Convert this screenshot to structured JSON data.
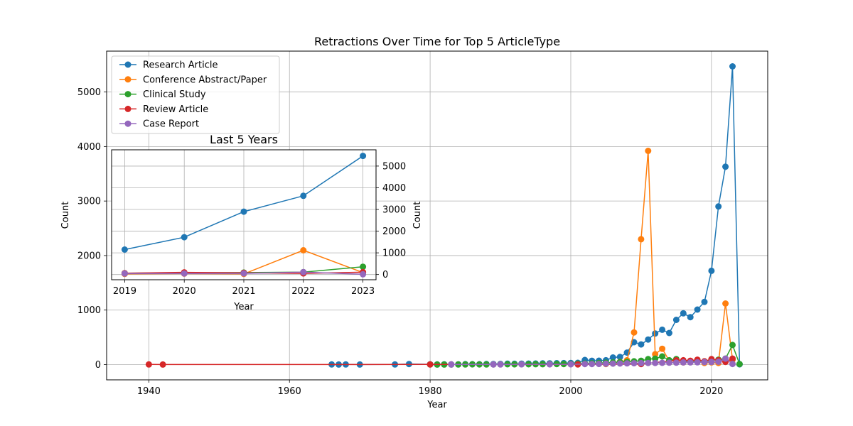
{
  "chart_data": [
    {
      "type": "line",
      "title": "Retractions Over Time for Top 5 ArticleType",
      "xlabel": "Year",
      "ylabel": "Count",
      "xlim": [
        1934,
        2028
      ],
      "ylim": [
        -280,
        5750
      ],
      "xticks": [
        1940,
        1960,
        1980,
        2000,
        2020
      ],
      "yticks": [
        0,
        1000,
        2000,
        3000,
        4000,
        5000
      ],
      "grid": true,
      "legend_position": "upper-left",
      "series": [
        {
          "name": "Research Article",
          "color": "#1f77b4",
          "x": [
            1966,
            1967,
            1968,
            1970,
            1975,
            1977,
            1980,
            1981,
            1982,
            1983,
            1984,
            1985,
            1986,
            1987,
            1988,
            1989,
            1990,
            1991,
            1992,
            1993,
            1994,
            1995,
            1996,
            1997,
            1998,
            1999,
            2000,
            2001,
            2002,
            2003,
            2004,
            2005,
            2006,
            2007,
            2008,
            2009,
            2010,
            2011,
            2012,
            2013,
            2014,
            2015,
            2016,
            2017,
            2018,
            2019,
            2020,
            2021,
            2022,
            2023,
            2024
          ],
          "y": [
            2,
            1,
            2,
            1,
            3,
            10,
            5,
            3,
            5,
            2,
            4,
            8,
            6,
            7,
            9,
            10,
            12,
            15,
            14,
            17,
            18,
            20,
            22,
            24,
            26,
            28,
            30,
            32,
            85,
            70,
            72,
            80,
            130,
            140,
            220,
            410,
            370,
            460,
            570,
            640,
            580,
            820,
            940,
            870,
            1010,
            1150,
            1720,
            2900,
            3630,
            5470,
            5
          ]
        },
        {
          "name": "Conference Abstract/Paper",
          "color": "#ff7f0e",
          "x": [
            2005,
            2006,
            2007,
            2008,
            2009,
            2010,
            2011,
            2012,
            2013,
            2014,
            2015,
            2016,
            2017,
            2018,
            2019,
            2020,
            2021,
            2022,
            2023
          ],
          "y": [
            10,
            20,
            50,
            80,
            590,
            2300,
            3920,
            190,
            290,
            70,
            60,
            40,
            50,
            60,
            30,
            40,
            30,
            1120,
            90
          ]
        },
        {
          "name": "Clinical Study",
          "color": "#2ca02c",
          "x": [
            1980,
            1981,
            1982,
            1983,
            1984,
            1985,
            1986,
            1987,
            1988,
            1989,
            1990,
            1991,
            1992,
            1993,
            1994,
            1995,
            1996,
            1997,
            1998,
            1999,
            2000,
            2001,
            2002,
            2003,
            2004,
            2005,
            2006,
            2007,
            2008,
            2009,
            2010,
            2011,
            2012,
            2013,
            2014,
            2015,
            2016,
            2017,
            2018,
            2019,
            2020,
            2021,
            2022,
            2023,
            2024
          ],
          "y": [
            2,
            1,
            1,
            2,
            3,
            2,
            5,
            4,
            3,
            4,
            5,
            6,
            5,
            6,
            7,
            8,
            8,
            9,
            10,
            11,
            12,
            15,
            20,
            25,
            30,
            35,
            40,
            45,
            50,
            60,
            70,
            100,
            110,
            150,
            80,
            100,
            60,
            50,
            70,
            60,
            80,
            90,
            110,
            360,
            10
          ]
        },
        {
          "name": "Review Article",
          "color": "#d62728",
          "x": [
            1940,
            1942,
            1980,
            2001,
            2010,
            2015,
            2016,
            2017,
            2018,
            2019,
            2020,
            2021,
            2022,
            2023
          ],
          "y": [
            2,
            1,
            3,
            2,
            10,
            80,
            80,
            70,
            90,
            60,
            100,
            80,
            50,
            110
          ]
        },
        {
          "name": "Case Report",
          "color": "#9467bd",
          "x": [
            1983,
            1989,
            1990,
            1993,
            1997,
            2000,
            2002,
            2003,
            2004,
            2005,
            2006,
            2007,
            2008,
            2009,
            2010,
            2011,
            2012,
            2013,
            2014,
            2015,
            2016,
            2017,
            2018,
            2019,
            2020,
            2021,
            2022,
            2023
          ],
          "y": [
            2,
            3,
            3,
            5,
            5,
            5,
            10,
            10,
            12,
            15,
            18,
            20,
            22,
            25,
            28,
            30,
            30,
            32,
            35,
            35,
            40,
            40,
            42,
            45,
            48,
            52,
            110,
            12
          ]
        }
      ]
    },
    {
      "type": "line",
      "title": "Last 5 Years",
      "xlabel": "Year",
      "ylabel": "Count",
      "xlim": [
        2018.78,
        2023.22
      ],
      "ylim": [
        -240,
        5750
      ],
      "xticks": [
        2019,
        2020,
        2021,
        2022,
        2023
      ],
      "yticks": [
        0,
        1000,
        2000,
        3000,
        4000,
        5000
      ],
      "grid": true,
      "series": [
        {
          "name": "Research Article",
          "color": "#1f77b4",
          "x": [
            2019,
            2020,
            2021,
            2022,
            2023
          ],
          "y": [
            1150,
            1720,
            2900,
            3630,
            5470
          ]
        },
        {
          "name": "Conference Abstract/Paper",
          "color": "#ff7f0e",
          "x": [
            2019,
            2020,
            2021,
            2022,
            2023
          ],
          "y": [
            30,
            40,
            30,
            1120,
            90
          ]
        },
        {
          "name": "Clinical Study",
          "color": "#2ca02c",
          "x": [
            2019,
            2020,
            2021,
            2022,
            2023
          ],
          "y": [
            60,
            80,
            90,
            110,
            360
          ]
        },
        {
          "name": "Review Article",
          "color": "#d62728",
          "x": [
            2019,
            2020,
            2021,
            2022,
            2023
          ],
          "y": [
            60,
            100,
            80,
            50,
            110
          ]
        },
        {
          "name": "Case Report",
          "color": "#9467bd",
          "x": [
            2019,
            2020,
            2021,
            2022,
            2023
          ],
          "y": [
            45,
            48,
            52,
            110,
            12
          ]
        }
      ]
    }
  ]
}
